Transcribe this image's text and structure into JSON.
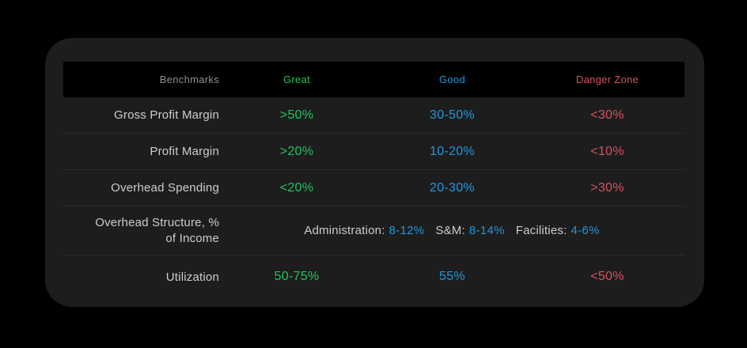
{
  "colors": {
    "page-bg": "#000000",
    "card-bg": "#1d1d1e",
    "header-bg": "#000000",
    "divider": "#2c2c2c",
    "label": "#cdcdcd",
    "muted-label": "#909090",
    "great": "#1cc55d",
    "good": "#2196db",
    "danger": "#d65261"
  },
  "table": {
    "header": {
      "benchmarks": "Benchmarks",
      "great": "Great",
      "good": "Good",
      "danger": "Danger Zone"
    },
    "rows": [
      {
        "label": "Gross Profit Margin",
        "great": ">50%",
        "good": "30-50%",
        "danger": "<30%"
      },
      {
        "label": "Profit Margin",
        "great": ">20%",
        "good": "10-20%",
        "danger": "<10%"
      },
      {
        "label": "Overhead Spending",
        "great": "<20%",
        "good": "20-30%",
        "danger": ">30%"
      },
      {
        "label": "Utilization",
        "great": "50-75%",
        "good": "55%",
        "danger": "<50%"
      }
    ],
    "overhead_structure": {
      "label_line1": "Overhead Structure, %",
      "label_line2": "of Income",
      "segments": [
        {
          "label": "Administration:",
          "value": "8-12%"
        },
        {
          "label": "S&M:",
          "value": "8-14%"
        },
        {
          "label": "Facilities:",
          "value": "4-6%"
        }
      ]
    }
  },
  "chart_data": {
    "type": "table",
    "title": "Benchmarks",
    "columns": [
      "Benchmarks",
      "Great",
      "Good",
      "Danger Zone"
    ],
    "rows": [
      [
        "Gross Profit Margin",
        ">50%",
        "30-50%",
        "<30%"
      ],
      [
        "Profit Margin",
        ">20%",
        "10-20%",
        "<10%"
      ],
      [
        "Overhead Spending",
        "<20%",
        "20-30%",
        ">30%"
      ],
      [
        "Overhead Structure, % of Income",
        "Administration: 8-12%",
        "S&M: 8-14%",
        "Facilities: 4-6%"
      ],
      [
        "Utilization",
        "50-75%",
        "55%",
        "<50%"
      ]
    ],
    "column_colors": {
      "Great": "#1cc55d",
      "Good": "#2196db",
      "Danger Zone": "#d65261"
    },
    "layout": "dark rounded card on black background, black header band, right-aligned row labels, centered value columns, thin row dividers"
  }
}
